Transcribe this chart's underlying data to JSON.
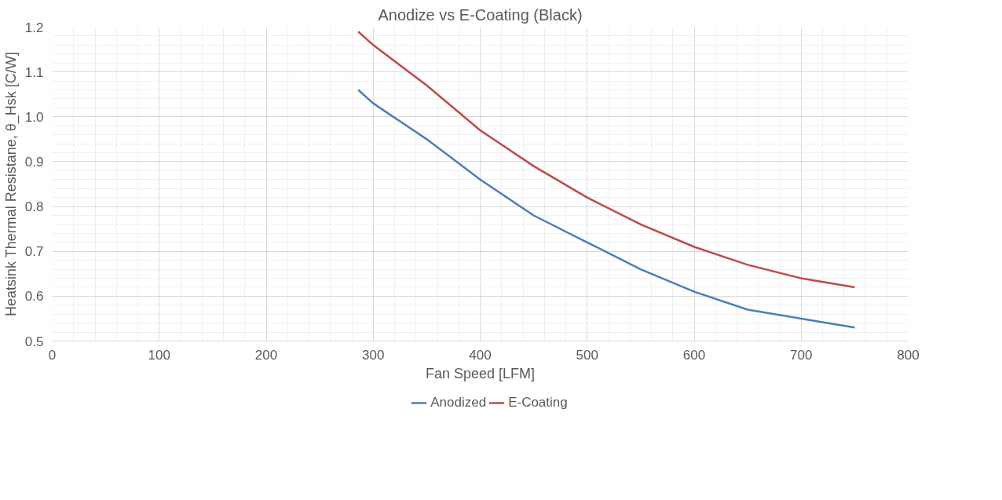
{
  "chart_data": {
    "type": "line",
    "title": "Anodize vs E-Coating (Black)",
    "xlabel": "Fan Speed [LFM]",
    "ylabel": "Heatsink Thermal Resistane, θ_Hsk [C/W]",
    "x": [
      286,
      300,
      350,
      400,
      450,
      500,
      550,
      600,
      650,
      700,
      750
    ],
    "series": [
      {
        "name": "Anodized",
        "color": "#4a7ebb",
        "values": [
          1.06,
          1.03,
          0.95,
          0.86,
          0.78,
          0.72,
          0.66,
          0.61,
          0.57,
          0.55,
          0.53
        ]
      },
      {
        "name": "E-Coating",
        "color": "#be4b48",
        "values": [
          1.19,
          1.16,
          1.07,
          0.97,
          0.89,
          0.82,
          0.76,
          0.71,
          0.67,
          0.64,
          0.62
        ]
      }
    ],
    "xlim": [
      0,
      800
    ],
    "xticks": [
      0,
      100,
      200,
      300,
      400,
      500,
      600,
      700,
      800
    ],
    "ylim": [
      0.5,
      1.2
    ],
    "yticks": [
      {
        "value": 0.5,
        "label": "0.5"
      },
      {
        "value": 0.6,
        "label": "0.6"
      },
      {
        "value": 0.7,
        "label": "0.7"
      },
      {
        "value": 0.8,
        "label": "0.8"
      },
      {
        "value": 0.9,
        "label": "0.9"
      },
      {
        "value": 1.0,
        "label": "1.0"
      },
      {
        "value": 1.1,
        "label": "1.1"
      },
      {
        "value": 1.2,
        "label": "1.2"
      }
    ],
    "grid": true,
    "legend": "bottom",
    "line_style": "solid"
  }
}
